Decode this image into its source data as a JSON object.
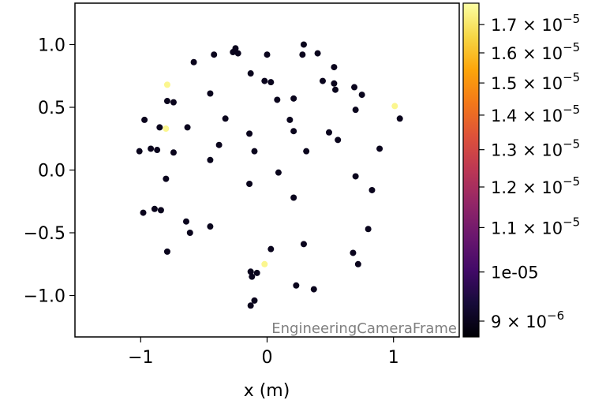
{
  "chart_data": {
    "type": "scatter",
    "xlabel": "x  (m)",
    "ylabel": "",
    "xlim": [
      -1.52,
      1.52
    ],
    "ylim": [
      -1.33,
      1.33
    ],
    "x_ticks": [
      {
        "value": -1,
        "label": "−1"
      },
      {
        "value": 0,
        "label": "0"
      },
      {
        "value": 1,
        "label": "1"
      }
    ],
    "y_ticks": [
      {
        "value": 1.0,
        "label": "1.0"
      },
      {
        "value": 0.5,
        "label": "0.5"
      },
      {
        "value": 0.0,
        "label": "0.0"
      },
      {
        "value": -0.5,
        "label": "−0.5"
      },
      {
        "value": -1.0,
        "label": "−1.0"
      }
    ],
    "watermark": "EngineeringCameraFrame",
    "colormap": "inferno",
    "colorbar": {
      "scale": "log",
      "range": [
        8.7e-06,
        1.78e-05
      ],
      "ticks": [
        {
          "value": 1.7e-05,
          "base": "1.7 × 10",
          "exp": "−5"
        },
        {
          "value": 1.6e-05,
          "base": "1.6 × 10",
          "exp": "−5"
        },
        {
          "value": 1.5e-05,
          "base": "1.5 × 10",
          "exp": "−5"
        },
        {
          "value": 1.4e-05,
          "base": "1.4 × 10",
          "exp": "−5"
        },
        {
          "value": 1.3e-05,
          "base": "1.3 × 10",
          "exp": "−5"
        },
        {
          "value": 1.2e-05,
          "base": "1.2 × 10",
          "exp": "−5"
        },
        {
          "value": 1.1e-05,
          "base": "1.1 × 10",
          "exp": "−5"
        },
        {
          "value": 1e-05,
          "base": "1e-05",
          "exp": ""
        },
        {
          "value": 9e-06,
          "base": "9 × 10",
          "exp": "−6"
        }
      ]
    },
    "points": [
      [
        -0.25,
        0.97,
        9e-06
      ],
      [
        -0.27,
        0.94,
        9e-06
      ],
      [
        -0.23,
        0.93,
        9e-06
      ],
      [
        0.29,
        1.0,
        9e-06
      ],
      [
        0.4,
        0.93,
        9e-06
      ],
      [
        0.28,
        0.92,
        9e-06
      ],
      [
        -0.58,
        0.86,
        9e-06
      ],
      [
        -0.42,
        0.92,
        9e-06
      ],
      [
        0.0,
        0.92,
        9e-06
      ],
      [
        0.53,
        0.82,
        9e-06
      ],
      [
        -0.13,
        0.77,
        9e-06
      ],
      [
        -0.02,
        0.71,
        9e-06
      ],
      [
        0.03,
        0.7,
        9e-06
      ],
      [
        0.44,
        0.71,
        9e-06
      ],
      [
        0.53,
        0.69,
        9e-06
      ],
      [
        0.69,
        0.66,
        9e-06
      ],
      [
        0.54,
        0.64,
        9e-06
      ],
      [
        0.75,
        0.6,
        9e-06
      ],
      [
        -0.45,
        0.61,
        9e-06
      ],
      [
        -0.79,
        0.55,
        9e-06
      ],
      [
        -0.74,
        0.54,
        9e-06
      ],
      [
        0.08,
        0.56,
        9e-06
      ],
      [
        0.21,
        0.57,
        9e-06
      ],
      [
        0.7,
        0.48,
        9e-06
      ],
      [
        -0.97,
        0.4,
        9e-06
      ],
      [
        -0.33,
        0.41,
        9e-06
      ],
      [
        0.18,
        0.4,
        9e-06
      ],
      [
        0.21,
        0.31,
        9e-06
      ],
      [
        -0.85,
        0.34,
        9e-06
      ],
      [
        -0.63,
        0.34,
        9e-06
      ],
      [
        -0.14,
        0.29,
        9e-06
      ],
      [
        0.49,
        0.3,
        9e-06
      ],
      [
        0.56,
        0.24,
        9e-06
      ],
      [
        1.05,
        0.41,
        9e-06
      ],
      [
        -0.38,
        0.2,
        9e-06
      ],
      [
        -0.92,
        0.17,
        9e-06
      ],
      [
        -0.87,
        0.16,
        9e-06
      ],
      [
        -1.01,
        0.15,
        9e-06
      ],
      [
        -0.74,
        0.14,
        9e-06
      ],
      [
        -0.1,
        0.15,
        9e-06
      ],
      [
        0.31,
        0.15,
        9e-06
      ],
      [
        0.89,
        0.17,
        9e-06
      ],
      [
        -0.45,
        0.08,
        9e-06
      ],
      [
        0.09,
        -0.02,
        9e-06
      ],
      [
        0.7,
        -0.05,
        9e-06
      ],
      [
        -0.8,
        -0.07,
        9e-06
      ],
      [
        -0.14,
        -0.11,
        9e-06
      ],
      [
        0.83,
        -0.16,
        9e-06
      ],
      [
        0.21,
        -0.22,
        9e-06
      ],
      [
        -0.89,
        -0.31,
        9e-06
      ],
      [
        -0.84,
        -0.32,
        9e-06
      ],
      [
        -0.98,
        -0.34,
        9e-06
      ],
      [
        -0.64,
        -0.41,
        9e-06
      ],
      [
        -0.45,
        -0.45,
        9e-06
      ],
      [
        0.8,
        -0.47,
        9e-06
      ],
      [
        -0.61,
        -0.5,
        9e-06
      ],
      [
        0.29,
        -0.59,
        9e-06
      ],
      [
        0.03,
        -0.63,
        9e-06
      ],
      [
        -0.79,
        -0.65,
        9e-06
      ],
      [
        0.68,
        -0.66,
        9e-06
      ],
      [
        0.72,
        -0.75,
        9e-06
      ],
      [
        -0.13,
        -0.81,
        9e-06
      ],
      [
        -0.08,
        -0.82,
        9e-06
      ],
      [
        -0.12,
        -0.85,
        9e-06
      ],
      [
        0.23,
        -0.92,
        9e-06
      ],
      [
        0.37,
        -0.95,
        9e-06
      ],
      [
        -0.1,
        -1.04,
        9e-06
      ],
      [
        -0.13,
        -1.08,
        9e-06
      ],
      [
        -0.79,
        0.68,
        1.75e-05
      ],
      [
        -0.8,
        0.33,
        1.75e-05
      ],
      [
        1.01,
        0.51,
        1.75e-05
      ],
      [
        -0.02,
        -0.75,
        1.75e-05
      ]
    ]
  }
}
